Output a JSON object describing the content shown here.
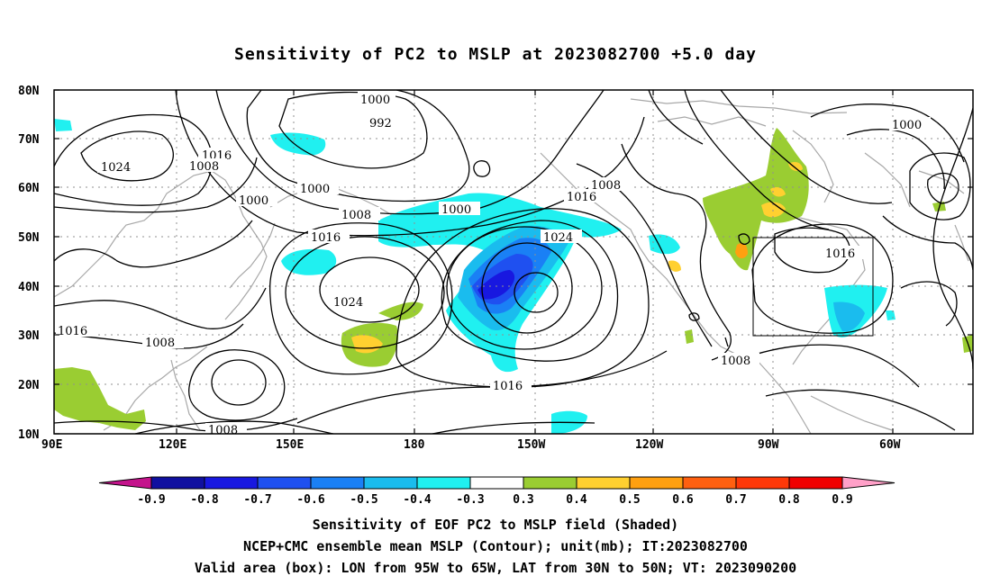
{
  "title": "Sensitivity of PC2 to MSLP at 2023082700 +5.0 day",
  "lat_labels": [
    "80N",
    "70N",
    "60N",
    "50N",
    "40N",
    "30N",
    "20N",
    "10N"
  ],
  "lon_labels": [
    "90E",
    "120E",
    "150E",
    "180",
    "150W",
    "120W",
    "90W",
    "60W"
  ],
  "contour_labels": {
    "c1000a": "1000",
    "c992": "992",
    "c1016a": "1016",
    "c1024a": "1024",
    "c1008a": "1008",
    "c1000b": "1000",
    "c1000c": "1000",
    "c1008b": "1008",
    "c1000d": "1000",
    "c1008c": "1008",
    "c1016b": "1016",
    "c1016c": "1016",
    "c1024b": "1024",
    "c1024c": "1024",
    "c1016d": "1016",
    "c1008d": "1008",
    "c1016e": "1016",
    "c1008e": "1008",
    "c1000e": "1000",
    "c1016f": "1016",
    "c1008f": "1008"
  },
  "colorbar": {
    "labels": [
      "-0.9",
      "-0.8",
      "-0.7",
      "-0.6",
      "-0.5",
      "-0.4",
      "-0.3",
      "0.3",
      "0.4",
      "0.5",
      "0.6",
      "0.7",
      "0.8",
      "0.9"
    ],
    "colors": {
      "left_arrow": "#c4148c",
      "bins": [
        "#1010a0",
        "#1818e0",
        "#1f50f0",
        "#1a80f5",
        "#1abcee",
        "#20f0f0",
        "#ffffff",
        "#9acd32",
        "#ffd030",
        "#ffa010",
        "#ff6010",
        "#ff3808",
        "#f00000"
      ],
      "right_arrow": "#ffa0c8"
    }
  },
  "captions": {
    "line1": "Sensitivity of EOF PC2 to MSLP field (Shaded)",
    "line2": "NCEP+CMC ensemble mean MSLP (Contour); unit(mb); IT:2023082700",
    "line3": "Valid area (box): LON from 95W to 65W, LAT from 30N to 50N; VT: 2023090200"
  }
}
